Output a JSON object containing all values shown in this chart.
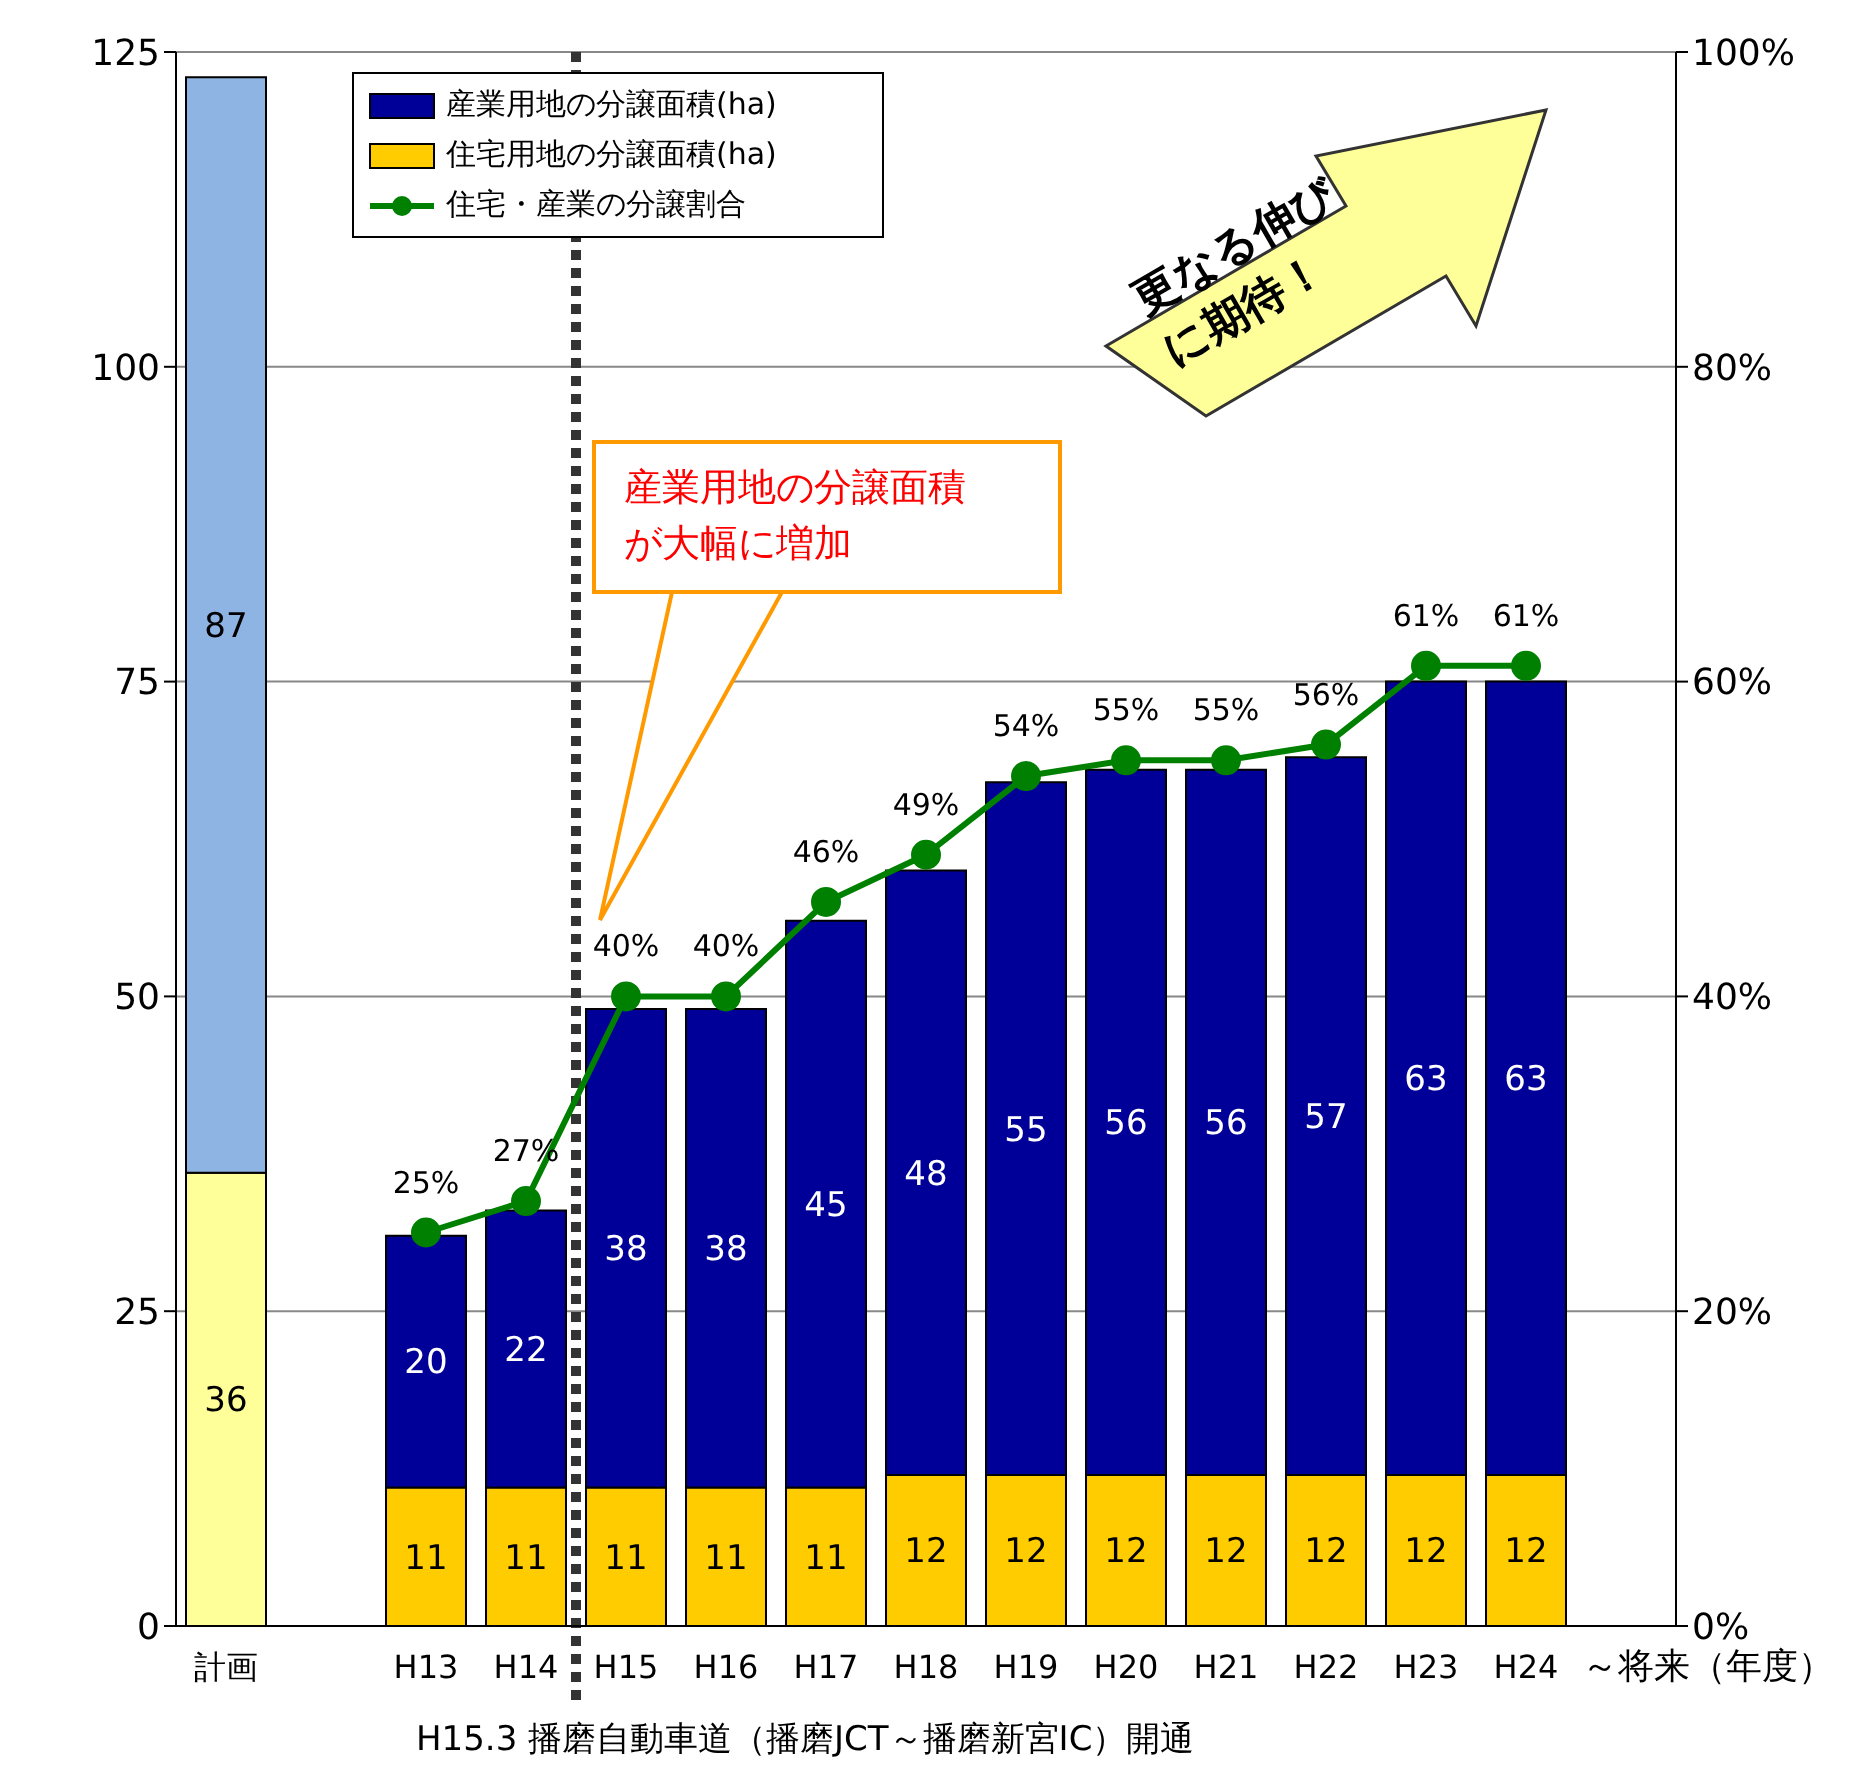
{
  "chart_data": {
    "type": "bar",
    "stacked": true,
    "categories": [
      "計画",
      null,
      "H13",
      "H14",
      "H15",
      "H16",
      "H17",
      "H18",
      "H19",
      "H20",
      "H21",
      "H22",
      "H23",
      "H24",
      "～将来（年度）"
    ],
    "series": [
      {
        "name": "住宅用地の分譲面積(ha)",
        "color": "#ffcc00",
        "colors": [
          "#ffff99",
          null,
          "#ffcc00",
          "#ffcc00",
          "#ffcc00",
          "#ffcc00",
          "#ffcc00",
          "#ffcc00",
          "#ffcc00",
          "#ffcc00",
          "#ffcc00",
          "#ffcc00",
          "#ffcc00",
          "#ffcc00",
          null
        ],
        "values": [
          36,
          null,
          11,
          11,
          11,
          11,
          11,
          12,
          12,
          12,
          12,
          12,
          12,
          12,
          null
        ]
      },
      {
        "name": "産業用地の分譲面積(ha)",
        "color": "#000099",
        "colors": [
          "#8eb4e3",
          null,
          "#000099",
          "#000099",
          "#000099",
          "#000099",
          "#000099",
          "#000099",
          "#000099",
          "#000099",
          "#000099",
          "#000099",
          "#000099",
          "#000099",
          null
        ],
        "values": [
          87,
          null,
          20,
          22,
          38,
          38,
          45,
          48,
          55,
          56,
          56,
          57,
          63,
          63,
          null
        ]
      },
      {
        "name": "住宅・産業の分譲割合",
        "type": "line",
        "axis": "y2",
        "color": "#008000",
        "marker": "circle",
        "values": [
          null,
          null,
          25,
          27,
          40,
          40,
          46,
          49,
          54,
          55,
          55,
          56,
          61,
          61,
          null
        ],
        "value_labels": [
          null,
          null,
          "25%",
          "27%",
          "40%",
          "40%",
          "46%",
          "49%",
          "54%",
          "55%",
          "55%",
          "56%",
          "61%",
          "61%",
          null
        ]
      }
    ],
    "data_labels": true,
    "ylim": [
      0,
      125
    ],
    "yticks": [
      0,
      25,
      50,
      75,
      100,
      125
    ],
    "y2lim": [
      0,
      100
    ],
    "y2ticks": [
      {
        "value": 0,
        "label": "0%"
      },
      {
        "value": 20,
        "label": "20%"
      },
      {
        "value": 40,
        "label": "40%"
      },
      {
        "value": 60,
        "label": "60%"
      },
      {
        "value": 80,
        "label": "80%"
      },
      {
        "value": 100,
        "label": "100%"
      }
    ],
    "grid": "y",
    "legend": "top left",
    "ref_lines": [
      {
        "axis": "x",
        "value": "H15",
        "color": "#333333",
        "line_style": "dotted"
      }
    ],
    "annotations": [
      "産業用地の分譲面積が大幅に増加",
      "更なる伸びに期待！",
      "H15.3 播磨自動車道（播磨JCT～播磨新宮IC）開通"
    ]
  }
}
